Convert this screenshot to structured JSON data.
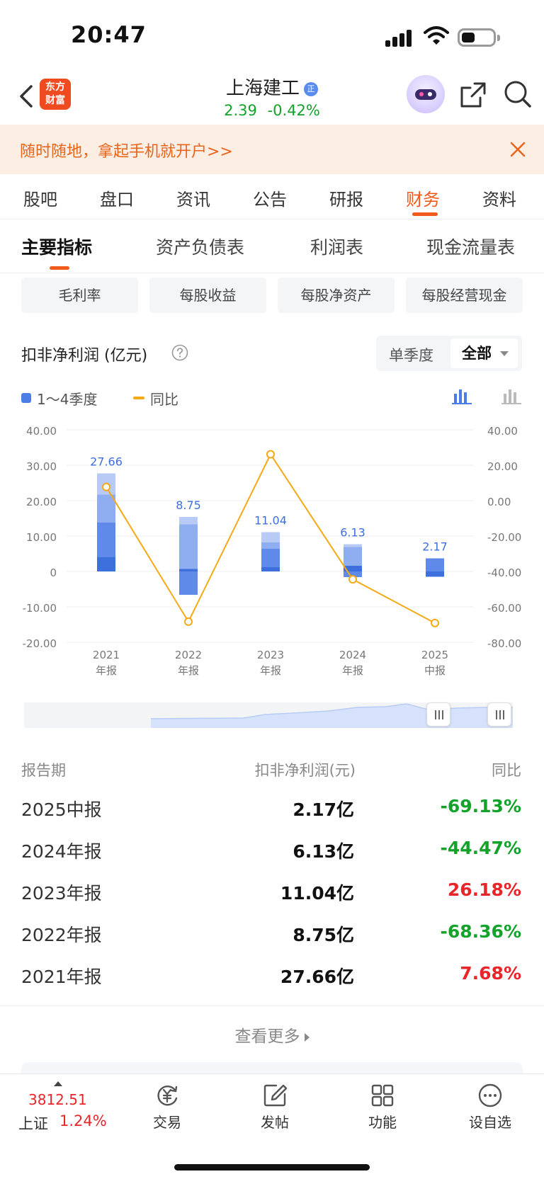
{
  "status_bar": {
    "time": "20:47"
  },
  "header": {
    "logo_line1": "东方",
    "logo_line2": "财富",
    "stock_name": "上海建工",
    "badge": "正",
    "price": "2.39",
    "change_pct": "-0.42%"
  },
  "banner": {
    "text": "随时随地，拿起手机就开户>>"
  },
  "tabs": [
    {
      "label": "股吧"
    },
    {
      "label": "盘口"
    },
    {
      "label": "资讯"
    },
    {
      "label": "公告"
    },
    {
      "label": "研报"
    },
    {
      "label": "财务"
    },
    {
      "label": "资料"
    }
  ],
  "active_tab": "财务",
  "subtabs": [
    {
      "label": "主要指标"
    },
    {
      "label": "资产负债表"
    },
    {
      "label": "利润表"
    },
    {
      "label": "现金流量表"
    }
  ],
  "pills": [
    {
      "label": "毛利率"
    },
    {
      "label": "每股收益"
    },
    {
      "label": "每股净资产"
    },
    {
      "label": "每股经营现金"
    }
  ],
  "chart_head": {
    "title": "扣非净利润 (亿元)",
    "period_single": "单季度",
    "period_all": "全部"
  },
  "legend": {
    "bars": "1～4季度",
    "line": "同比"
  },
  "colors": {
    "accent": "#f05a1a",
    "bar": "#4a7de6",
    "line": "#f5a915",
    "up": "#e8262a",
    "down": "#14a32a"
  },
  "chart_data": {
    "type": "bar",
    "categories": [
      [
        "2021",
        "年报"
      ],
      [
        "2022",
        "年报"
      ],
      [
        "2023",
        "年报"
      ],
      [
        "2024",
        "年报"
      ],
      [
        "2025",
        "中报"
      ]
    ],
    "series": [
      {
        "name": "1～4季度",
        "values": [
          27.66,
          8.75,
          11.04,
          6.13,
          2.17
        ],
        "axis": "left"
      },
      {
        "name": "同比",
        "values": [
          7.68,
          -68.36,
          26.18,
          -44.47,
          -69.13
        ],
        "axis": "right",
        "type": "line"
      }
    ],
    "quarterly_stack": [
      [
        4.0,
        9.8,
        7.9,
        6.0
      ],
      [
        0.7,
        -6.6,
        12.6,
        2.1
      ],
      [
        1.2,
        5.2,
        1.8,
        2.9
      ],
      [
        1.6,
        -1.6,
        5.3,
        0.8
      ],
      [
        -1.5,
        3.7
      ]
    ],
    "data_labels": [
      "27.66",
      "8.75",
      "11.04",
      "6.13",
      "2.17"
    ],
    "left_ticks": [
      "40.00",
      "30.00",
      "20.00",
      "10.00",
      "0",
      "-10.00",
      "-20.00"
    ],
    "right_ticks": [
      "40.00",
      "20.00",
      "0.00",
      "-20.00",
      "-40.00",
      "-60.00",
      "-80.00"
    ],
    "ylim_left": [
      -20,
      40
    ],
    "ylim_right": [
      -80,
      40
    ],
    "grid": true,
    "legend_position": "top-left"
  },
  "table": {
    "headers": [
      "报告期",
      "扣非净利润(元)",
      "同比"
    ],
    "rows": [
      {
        "period": "2025中报",
        "value": "2.17亿",
        "yoy": "-69.13%",
        "dir": "down"
      },
      {
        "period": "2024年报",
        "value": "6.13亿",
        "yoy": "-44.47%",
        "dir": "down"
      },
      {
        "period": "2023年报",
        "value": "11.04亿",
        "yoy": "26.18%",
        "dir": "up"
      },
      {
        "period": "2022年报",
        "value": "8.75亿",
        "yoy": "-68.36%",
        "dir": "down"
      },
      {
        "period": "2021年报",
        "value": "27.66亿",
        "yoy": "7.68%",
        "dir": "up"
      }
    ]
  },
  "more_label": "查看更多",
  "bottom_nav": {
    "index_value": "3812.51",
    "index_name": "上证",
    "index_change": "1.24%",
    "items": [
      {
        "label": "交易",
        "icon": "yuan-exchange-icon"
      },
      {
        "label": "发帖",
        "icon": "edit-icon"
      },
      {
        "label": "功能",
        "icon": "grid-icon"
      },
      {
        "label": "设自选",
        "icon": "more-dots-icon"
      }
    ]
  }
}
